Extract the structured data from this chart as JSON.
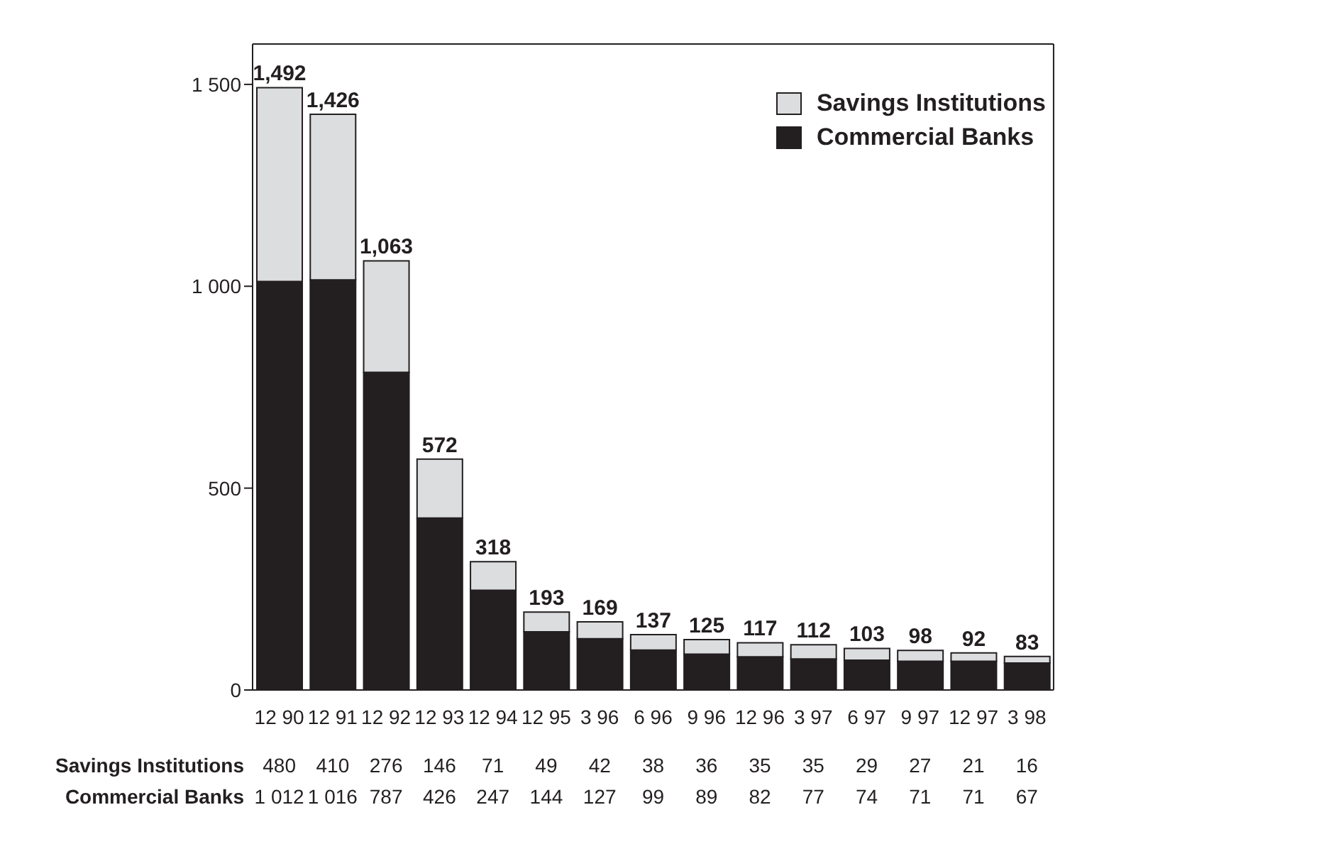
{
  "chart_data": {
    "type": "bar",
    "stacked": true,
    "categories": [
      "12 90",
      "12 91",
      "12 92",
      "12 93",
      "12 94",
      "12 95",
      "3 96",
      "6 96",
      "9 96",
      "12 96",
      "3 97",
      "6 97",
      "9 97",
      "12 97",
      "3 98"
    ],
    "series": [
      {
        "name": "Commercial Banks",
        "color": "#231f20",
        "values": [
          1012,
          1016,
          787,
          426,
          247,
          144,
          127,
          99,
          89,
          82,
          77,
          74,
          71,
          71,
          67
        ],
        "value_labels": [
          "1 012",
          "1 016",
          "787",
          "426",
          "247",
          "144",
          "127",
          "99",
          "89",
          "82",
          "77",
          "74",
          "71",
          "71",
          "67"
        ]
      },
      {
        "name": "Savings Institutions",
        "color": "#dcdddf",
        "values": [
          480,
          410,
          276,
          146,
          71,
          49,
          42,
          38,
          36,
          35,
          35,
          29,
          27,
          21,
          16
        ],
        "value_labels": [
          "480",
          "410",
          "276",
          "146",
          "71",
          "49",
          "42",
          "38",
          "36",
          "35",
          "35",
          "29",
          "27",
          "21",
          "16"
        ]
      }
    ],
    "totals": [
      "1,492",
      "1,426",
      "1,063",
      "572",
      "318",
      "193",
      "169",
      "137",
      "125",
      "117",
      "112",
      "103",
      "98",
      "92",
      "83"
    ],
    "ylim": [
      0,
      1600
    ],
    "yticks": [
      {
        "value": 0,
        "label": "0"
      },
      {
        "value": 500,
        "label": "500"
      },
      {
        "value": 1000,
        "label": "1 000"
      },
      {
        "value": 1500,
        "label": "1 500"
      }
    ],
    "grid": false,
    "legend": "top right"
  }
}
